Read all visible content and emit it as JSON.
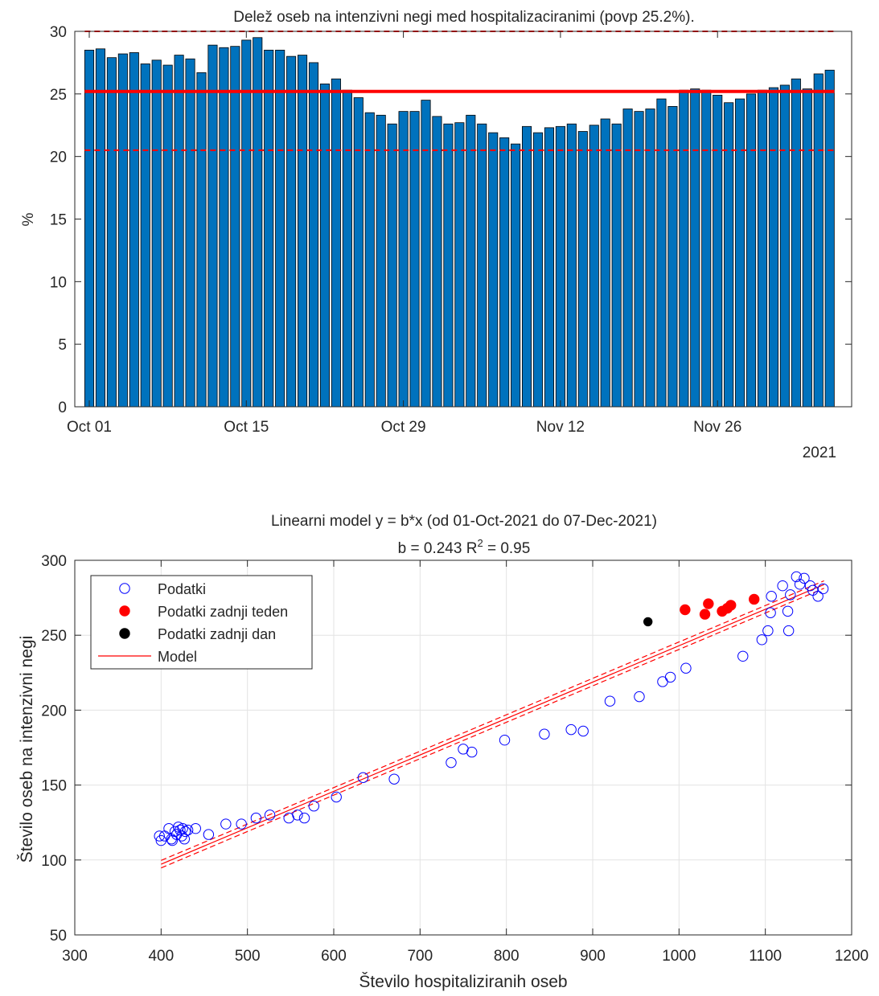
{
  "chart_data": [
    {
      "type": "bar",
      "title": "Delež oseb na intenzivni negi med hospitalizaciranimi (povp 25.2%).",
      "xlabel": "",
      "ylabel": "%",
      "ylim": [
        0,
        30
      ],
      "y_ticks": [
        0,
        5,
        10,
        15,
        20,
        25,
        30
      ],
      "x_tick_labels": [
        "Oct 01",
        "Oct 15",
        "Oct 29",
        "Nov 12",
        "Nov 26"
      ],
      "x_tick_index": [
        0,
        14,
        28,
        42,
        56
      ],
      "x_secondary_label": "2021",
      "bar_color": "#0072BD",
      "line_color": "#FF0000",
      "mean": 25.2,
      "band": [
        20.5,
        30.0
      ],
      "grid": false,
      "dates": "2021-10-01 .. 2021-12-07 (daily)",
      "values": [
        28.5,
        28.6,
        27.9,
        28.2,
        28.3,
        27.4,
        27.7,
        27.3,
        28.1,
        27.8,
        26.7,
        28.9,
        28.7,
        28.8,
        29.3,
        29.5,
        28.5,
        28.5,
        28.0,
        28.1,
        27.5,
        25.8,
        26.2,
        25.3,
        24.7,
        23.5,
        23.3,
        22.6,
        23.6,
        23.6,
        24.5,
        23.2,
        22.6,
        22.7,
        23.3,
        22.6,
        21.9,
        21.5,
        21.0,
        22.4,
        21.9,
        22.3,
        22.4,
        22.6,
        22.0,
        22.5,
        23.0,
        22.6,
        23.8,
        23.6,
        23.8,
        24.6,
        24.0,
        25.3,
        25.4,
        25.3,
        24.9,
        24.3,
        24.6,
        25.0,
        25.3,
        25.5,
        25.7,
        26.2,
        25.4,
        26.6,
        26.9
      ]
    },
    {
      "type": "scatter",
      "title": "Linearni model y = b*x (od 01-Oct-2021 do 07-Dec-2021)",
      "subtitle": "b = 0.243 R",
      "subtitle_sup": "2",
      "subtitle_tail": " = 0.95",
      "xlabel": "Število hospitaliziranih oseb",
      "ylabel": "Število oseb na intenzivni negi",
      "xlim": [
        300,
        1200
      ],
      "ylim": [
        50,
        300
      ],
      "x_ticks": [
        300,
        400,
        500,
        600,
        700,
        800,
        900,
        1000,
        1100,
        1200
      ],
      "y_ticks": [
        50,
        100,
        150,
        200,
        250,
        300
      ],
      "grid": true,
      "legend_position": "top-left",
      "slope": 0.243,
      "x_range": [
        400,
        1168
      ],
      "ci_offset": 2.5,
      "series": [
        {
          "name": "Podatki",
          "marker": "open-circle",
          "color": "#0000FF",
          "points": [
            [
              398,
              116
            ],
            [
              400,
              113
            ],
            [
              404,
              116
            ],
            [
              409,
              121
            ],
            [
              412,
              114
            ],
            [
              413,
              113
            ],
            [
              416,
              119
            ],
            [
              418,
              117
            ],
            [
              420,
              122
            ],
            [
              422,
              120
            ],
            [
              424,
              116
            ],
            [
              425,
              121
            ],
            [
              427,
              114
            ],
            [
              428,
              119
            ],
            [
              431,
              120
            ],
            [
              440,
              121
            ],
            [
              455,
              117
            ],
            [
              475,
              124
            ],
            [
              493,
              124
            ],
            [
              510,
              128
            ],
            [
              526,
              130
            ],
            [
              548,
              128
            ],
            [
              558,
              130
            ],
            [
              566,
              128
            ],
            [
              577,
              136
            ],
            [
              603,
              142
            ],
            [
              634,
              155
            ],
            [
              670,
              154
            ],
            [
              736,
              165
            ],
            [
              750,
              174
            ],
            [
              760,
              172
            ],
            [
              798,
              180
            ],
            [
              844,
              184
            ],
            [
              875,
              187
            ],
            [
              889,
              186
            ],
            [
              920,
              206
            ],
            [
              954,
              209
            ],
            [
              981,
              219
            ],
            [
              990,
              222
            ],
            [
              1008,
              228
            ],
            [
              1074,
              236
            ],
            [
              1096,
              247
            ],
            [
              1103,
              253
            ],
            [
              1106,
              265
            ],
            [
              1107,
              276
            ],
            [
              1120,
              283
            ],
            [
              1126,
              266
            ],
            [
              1127,
              253
            ],
            [
              1129,
              277
            ],
            [
              1136,
              289
            ],
            [
              1140,
              284
            ],
            [
              1145,
              288
            ],
            [
              1152,
              283
            ],
            [
              1155,
              280
            ],
            [
              1161,
              276
            ],
            [
              1167,
              281
            ]
          ]
        },
        {
          "name": "Podatki zadnji teden",
          "marker": "filled-circle",
          "color": "#FF0000",
          "points": [
            [
              1007,
              267
            ],
            [
              1030,
              264
            ],
            [
              1034,
              271
            ],
            [
              1050,
              266
            ],
            [
              1056,
              268
            ],
            [
              1060,
              270
            ],
            [
              1087,
              274
            ]
          ]
        },
        {
          "name": "Podatki zadnji dan",
          "marker": "filled-circle",
          "color": "#000000",
          "points": [
            [
              964,
              259
            ]
          ]
        },
        {
          "name": "Model",
          "marker": "line",
          "color": "#FF0000"
        }
      ]
    }
  ]
}
